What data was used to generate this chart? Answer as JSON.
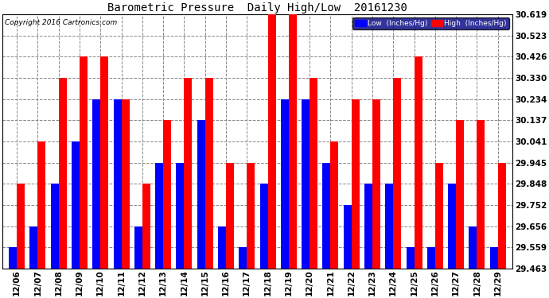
{
  "title": "Barometric Pressure  Daily High/Low  20161230",
  "copyright": "Copyright 2016 Cartronics.com",
  "dates": [
    "12/06",
    "12/07",
    "12/08",
    "12/09",
    "12/10",
    "12/11",
    "12/12",
    "12/13",
    "12/14",
    "12/15",
    "12/16",
    "12/17",
    "12/18",
    "12/19",
    "12/20",
    "12/21",
    "12/22",
    "12/23",
    "12/24",
    "12/25",
    "12/26",
    "12/27",
    "12/28",
    "12/29"
  ],
  "high": [
    29.848,
    30.041,
    30.33,
    30.426,
    30.426,
    30.234,
    29.848,
    30.137,
    30.33,
    30.33,
    29.945,
    29.945,
    30.619,
    30.619,
    30.33,
    30.041,
    30.234,
    30.234,
    30.33,
    30.426,
    29.945,
    30.137,
    30.137,
    29.945
  ],
  "low": [
    29.559,
    29.656,
    29.848,
    30.041,
    30.234,
    30.234,
    29.656,
    29.945,
    29.945,
    30.137,
    29.656,
    29.559,
    29.848,
    30.234,
    30.234,
    29.945,
    29.752,
    29.848,
    29.848,
    29.559,
    29.559,
    29.848,
    29.656,
    29.559
  ],
  "ymin": 29.463,
  "ymax": 30.619,
  "yticks": [
    29.463,
    29.559,
    29.656,
    29.752,
    29.848,
    29.945,
    30.041,
    30.137,
    30.234,
    30.33,
    30.426,
    30.523,
    30.619
  ],
  "low_color": "#0000ff",
  "high_color": "#ff0000",
  "bg_color": "#ffffff",
  "grid_color": "#888888",
  "title_color": "#000000",
  "bar_width": 0.38,
  "legend_low_label": "Low  (Inches/Hg)",
  "legend_high_label": "High  (Inches/Hg)",
  "legend_bg": "#000080"
}
